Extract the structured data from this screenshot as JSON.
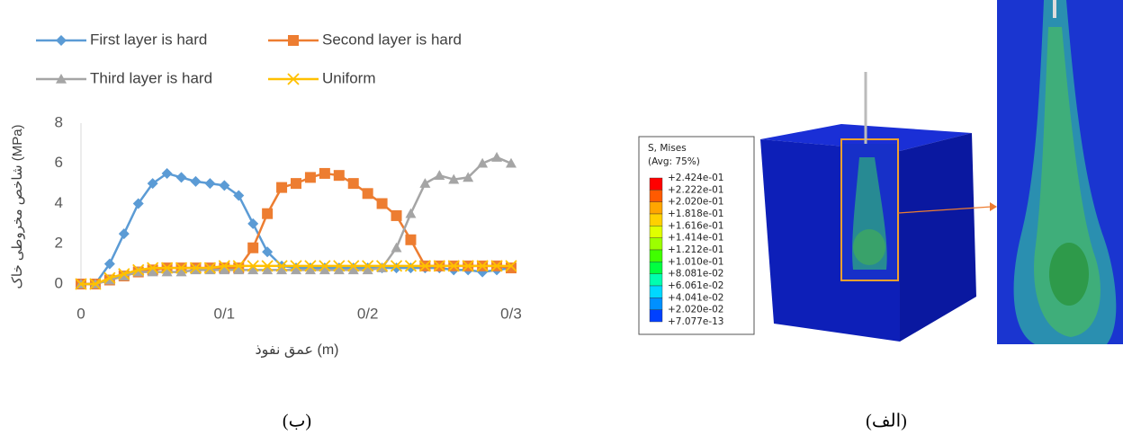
{
  "chart_data": {
    "type": "line",
    "y_label": "شاخص مخروطی خاک (MPa)",
    "x_label": "عمق نفوذ (m)",
    "x": [
      0,
      0.01,
      0.02,
      0.03,
      0.04,
      0.05,
      0.06,
      0.07,
      0.08,
      0.09,
      0.1,
      0.11,
      0.12,
      0.13,
      0.14,
      0.15,
      0.16,
      0.17,
      0.18,
      0.19,
      0.2,
      0.21,
      0.22,
      0.23,
      0.24,
      0.25,
      0.26,
      0.27,
      0.28,
      0.29,
      0.3
    ],
    "series": [
      {
        "name": "First layer is hard",
        "color": "#5b9bd5",
        "marker": "diamond",
        "values": [
          0,
          0,
          1.0,
          2.5,
          4.0,
          5.0,
          5.5,
          5.3,
          5.1,
          5.0,
          4.9,
          4.4,
          3.0,
          1.6,
          0.9,
          0.8,
          0.8,
          0.8,
          0.8,
          0.8,
          0.8,
          0.8,
          0.8,
          0.8,
          0.8,
          0.8,
          0.7,
          0.7,
          0.6,
          0.7,
          0.8
        ]
      },
      {
        "name": "Second layer is hard",
        "color": "#ed7d31",
        "marker": "square",
        "values": [
          0,
          0,
          0.2,
          0.4,
          0.6,
          0.7,
          0.8,
          0.8,
          0.8,
          0.8,
          0.8,
          0.8,
          1.8,
          3.5,
          4.8,
          5.0,
          5.3,
          5.5,
          5.4,
          5.0,
          4.5,
          4.0,
          3.4,
          2.2,
          0.9,
          0.9,
          0.9,
          0.9,
          0.9,
          0.9,
          0.8
        ]
      },
      {
        "name": "Third layer is hard",
        "color": "#a5a5a5",
        "marker": "triangle",
        "values": [
          0,
          0,
          0.2,
          0.4,
          0.6,
          0.6,
          0.6,
          0.6,
          0.7,
          0.7,
          0.7,
          0.7,
          0.7,
          0.7,
          0.7,
          0.7,
          0.7,
          0.7,
          0.7,
          0.7,
          0.7,
          0.8,
          1.8,
          3.5,
          5.0,
          5.4,
          5.2,
          5.3,
          6.0,
          6.3,
          6.0
        ]
      },
      {
        "name": "Uniform",
        "color": "#ffc000",
        "marker": "x",
        "values": [
          0,
          0,
          0.3,
          0.5,
          0.7,
          0.8,
          0.8,
          0.8,
          0.8,
          0.8,
          0.9,
          0.9,
          0.9,
          0.9,
          0.9,
          0.9,
          0.9,
          0.9,
          0.9,
          0.9,
          0.9,
          0.9,
          0.9,
          0.9,
          0.9,
          0.9,
          0.9,
          0.9,
          0.9,
          0.9,
          0.9
        ]
      }
    ],
    "xlim": [
      0,
      0.3
    ],
    "xticks": [
      0,
      {
        "value": 0.1,
        "label": "0/1"
      },
      {
        "value": 0.2,
        "label": "0/2"
      },
      {
        "value": 0.3,
        "label": "0/3"
      }
    ],
    "ylim": [
      0,
      8
    ],
    "yticks": [
      0,
      2,
      4,
      6,
      8
    ],
    "grid": false,
    "legend": "top"
  },
  "captions": {
    "left": "(ب)",
    "right": "(الف)"
  },
  "contour_legend": {
    "title": "S, Mises",
    "subtitle": "(Avg: 75%)",
    "labels": [
      "+2.424e-01",
      "+2.222e-01",
      "+2.020e-01",
      "+1.818e-01",
      "+1.616e-01",
      "+1.414e-01",
      "+1.212e-01",
      "+1.010e-01",
      "+8.081e-02",
      "+6.061e-02",
      "+4.041e-02",
      "+2.020e-02",
      "+7.077e-13"
    ]
  }
}
